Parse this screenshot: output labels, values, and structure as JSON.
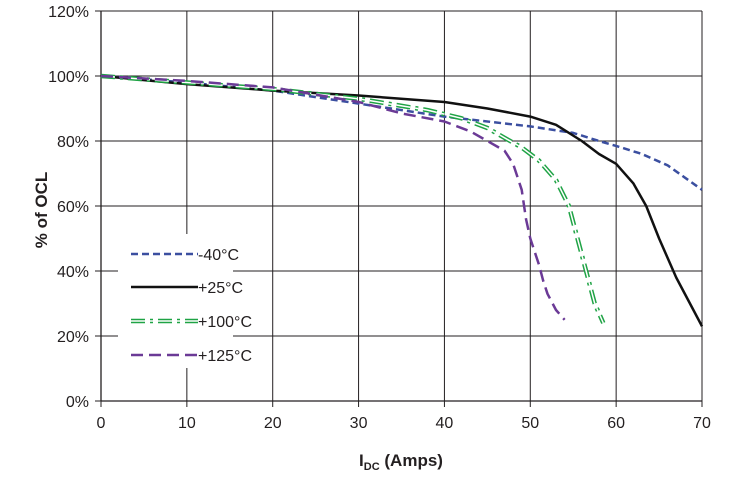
{
  "chart_data": {
    "type": "line",
    "title": "",
    "xlabel_main": "I",
    "xlabel_sub": "DC",
    "xlabel_unit": " (Amps)",
    "ylabel": "% of OCL",
    "xlim": [
      0,
      70
    ],
    "ylim": [
      0,
      120
    ],
    "x_ticks": [
      0,
      10,
      20,
      30,
      40,
      50,
      60,
      70
    ],
    "y_ticks": [
      0,
      20,
      40,
      60,
      80,
      100,
      120
    ],
    "x_tick_labels": [
      "0",
      "10",
      "20",
      "30",
      "40",
      "50",
      "60",
      "70"
    ],
    "y_tick_labels": [
      "0%",
      "20%",
      "40%",
      "60%",
      "80%",
      "100%",
      "120%"
    ],
    "grid": true,
    "legend_position": "lower-left",
    "series": [
      {
        "name": "-40°C",
        "color": "#3b4fa0",
        "style": "dashed",
        "points": [
          [
            0,
            100
          ],
          [
            10,
            98
          ],
          [
            20,
            95.5
          ],
          [
            30,
            91.5
          ],
          [
            40,
            87.5
          ],
          [
            50,
            84.5
          ],
          [
            55,
            82.5
          ],
          [
            58,
            80
          ],
          [
            60,
            78.5
          ],
          [
            63,
            76
          ],
          [
            66,
            72.5
          ],
          [
            70,
            65
          ]
        ]
      },
      {
        "name": "+25°C",
        "color": "#111111",
        "style": "solid",
        "points": [
          [
            0,
            100
          ],
          [
            10,
            97.5
          ],
          [
            20,
            95.5
          ],
          [
            30,
            94
          ],
          [
            40,
            92
          ],
          [
            45,
            90
          ],
          [
            50,
            87.5
          ],
          [
            53,
            85
          ],
          [
            56,
            80
          ],
          [
            58,
            76
          ],
          [
            60,
            73
          ],
          [
            62,
            67
          ],
          [
            63.5,
            60
          ],
          [
            65,
            50
          ],
          [
            67,
            38
          ],
          [
            69,
            28
          ],
          [
            70,
            23
          ]
        ]
      },
      {
        "name": "+100°C",
        "color": "#1fa345",
        "style": "dash-dot-double",
        "points": [
          [
            0,
            100
          ],
          [
            10,
            98
          ],
          [
            20,
            96
          ],
          [
            30,
            93
          ],
          [
            38,
            89.5
          ],
          [
            42,
            87
          ],
          [
            45,
            84
          ],
          [
            47,
            81
          ],
          [
            49,
            78
          ],
          [
            51,
            74
          ],
          [
            53,
            68
          ],
          [
            54.5,
            60
          ],
          [
            55.5,
            50
          ],
          [
            56.5,
            40
          ],
          [
            57.5,
            30
          ],
          [
            58.5,
            24
          ]
        ]
      },
      {
        "name": "+125°C",
        "color": "#6b3a96",
        "style": "long-dashed",
        "points": [
          [
            0,
            100
          ],
          [
            10,
            98.5
          ],
          [
            20,
            96.5
          ],
          [
            30,
            92
          ],
          [
            35,
            88.5
          ],
          [
            40,
            86
          ],
          [
            43,
            83
          ],
          [
            45,
            80
          ],
          [
            47,
            77
          ],
          [
            48,
            73
          ],
          [
            49,
            65
          ],
          [
            49.5,
            56
          ],
          [
            50,
            50
          ],
          [
            51,
            42
          ],
          [
            51.5,
            37
          ],
          [
            52,
            33
          ],
          [
            53,
            28
          ],
          [
            54,
            25
          ]
        ]
      }
    ]
  }
}
